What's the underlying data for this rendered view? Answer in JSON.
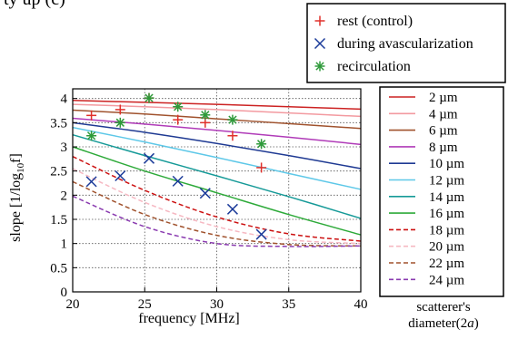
{
  "caption_fragment": "ty up (c)",
  "diameter_caption": {
    "line1": "scatterer's",
    "line2_prefix": "diameter(2",
    "line2_var": "a",
    "line2_suffix": ")"
  },
  "chart_data": {
    "type": "line",
    "xlabel": "frequency [MHz]",
    "ylabel": "slope [1/log10f]",
    "ylabel_parts": {
      "pre": "slope [1/log",
      "sub": "10",
      "post": "f]"
    },
    "xlim": [
      20,
      40
    ],
    "ylim": [
      0,
      4.2
    ],
    "xticks": [
      20,
      25,
      30,
      35,
      40
    ],
    "yticks": [
      0,
      0.5,
      1,
      1.5,
      2,
      2.5,
      3,
      3.5,
      4
    ],
    "ytick_labels": [
      "0",
      "0.5",
      "1",
      "1.5",
      "2",
      "2.5",
      "3",
      "3.5",
      "4"
    ],
    "grid": true,
    "grid_style": "dotted",
    "curves_legend": {
      "placement": "right",
      "entries": [
        {
          "label": "2 µm",
          "color": "#cc2222",
          "dash": false,
          "points": [
            [
              20,
              3.96
            ],
            [
              25,
              3.92
            ],
            [
              30,
              3.88
            ],
            [
              35,
              3.83
            ],
            [
              40,
              3.78
            ]
          ]
        },
        {
          "label": "4 µm",
          "color": "#f39aa0",
          "dash": false,
          "points": [
            [
              20,
              3.88
            ],
            [
              25,
              3.83
            ],
            [
              30,
              3.77
            ],
            [
              35,
              3.7
            ],
            [
              40,
              3.63
            ]
          ]
        },
        {
          "label": "6 µm",
          "color": "#a0522d",
          "dash": false,
          "points": [
            [
              20,
              3.76
            ],
            [
              25,
              3.68
            ],
            [
              30,
              3.58
            ],
            [
              35,
              3.48
            ],
            [
              40,
              3.38
            ]
          ]
        },
        {
          "label": "8 µm",
          "color": "#b03bb8",
          "dash": false,
          "points": [
            [
              20,
              3.59
            ],
            [
              25,
              3.47
            ],
            [
              30,
              3.34
            ],
            [
              35,
              3.2
            ],
            [
              40,
              3.05
            ]
          ]
        },
        {
          "label": "10 µm",
          "color": "#1f3a93",
          "dash": false,
          "points": [
            [
              20,
              3.5
            ],
            [
              25,
              3.3
            ],
            [
              30,
              3.07
            ],
            [
              35,
              2.82
            ],
            [
              40,
              2.55
            ]
          ]
        },
        {
          "label": "12 µm",
          "color": "#5ec8e8",
          "dash": false,
          "points": [
            [
              20,
              3.4
            ],
            [
              25,
              3.1
            ],
            [
              30,
              2.78
            ],
            [
              35,
              2.45
            ],
            [
              40,
              2.12
            ]
          ]
        },
        {
          "label": "14 µm",
          "color": "#169a98",
          "dash": false,
          "points": [
            [
              20,
              3.25
            ],
            [
              25,
              2.82
            ],
            [
              30,
              2.4
            ],
            [
              35,
              1.97
            ],
            [
              40,
              1.52
            ]
          ]
        },
        {
          "label": "16 µm",
          "color": "#2eaa3a",
          "dash": false,
          "points": [
            [
              20,
              3.0
            ],
            [
              25,
              2.5
            ],
            [
              30,
              2.05
            ],
            [
              35,
              1.6
            ],
            [
              40,
              1.18
            ]
          ]
        },
        {
          "label": "18 µm",
          "color": "#cc1111",
          "dash": true,
          "points": [
            [
              20,
              2.8
            ],
            [
              25,
              2.1
            ],
            [
              30,
              1.55
            ],
            [
              35,
              1.2
            ],
            [
              40,
              1.05
            ]
          ]
        },
        {
          "label": "20 µm",
          "color": "#f6b8c2",
          "dash": true,
          "points": [
            [
              20,
              2.55
            ],
            [
              25,
              1.85
            ],
            [
              30,
              1.35
            ],
            [
              35,
              1.08
            ],
            [
              40,
              1.0
            ]
          ]
        },
        {
          "label": "22 µm",
          "color": "#a0522d",
          "dash": true,
          "points": [
            [
              20,
              2.28
            ],
            [
              25,
              1.6
            ],
            [
              30,
              1.17
            ],
            [
              35,
              0.98
            ],
            [
              40,
              0.95
            ]
          ]
        },
        {
          "label": "24 µm",
          "color": "#8a3bb0",
          "dash": true,
          "points": [
            [
              20,
              1.98
            ],
            [
              25,
              1.35
            ],
            [
              30,
              1.0
            ],
            [
              35,
              0.94
            ],
            [
              40,
              0.95
            ]
          ]
        }
      ]
    },
    "markers_legend": {
      "placement": "top-right",
      "entries": [
        {
          "label": "rest (control)",
          "symbol": "plus",
          "color": "#e0302a",
          "points": [
            [
              21.3,
              3.65
            ],
            [
              23.3,
              3.77
            ],
            [
              25.3,
              4.01
            ],
            [
              27.3,
              3.56
            ],
            [
              29.2,
              3.5
            ],
            [
              31.1,
              3.23
            ],
            [
              33.1,
              2.57
            ]
          ]
        },
        {
          "label": "during avascularization",
          "symbol": "cross",
          "color": "#1a3a99",
          "points": [
            [
              21.3,
              2.28
            ],
            [
              23.3,
              2.4
            ],
            [
              25.3,
              2.76
            ],
            [
              27.3,
              2.29
            ],
            [
              29.2,
              2.04
            ],
            [
              31.1,
              1.71
            ],
            [
              33.1,
              1.19
            ]
          ]
        },
        {
          "label": "recirculation",
          "symbol": "star",
          "color": "#2e9a3a",
          "points": [
            [
              21.3,
              3.23
            ],
            [
              23.3,
              3.5
            ],
            [
              25.3,
              4.01
            ],
            [
              27.3,
              3.83
            ],
            [
              29.2,
              3.66
            ],
            [
              31.1,
              3.56
            ],
            [
              33.1,
              3.06
            ]
          ]
        }
      ]
    }
  }
}
